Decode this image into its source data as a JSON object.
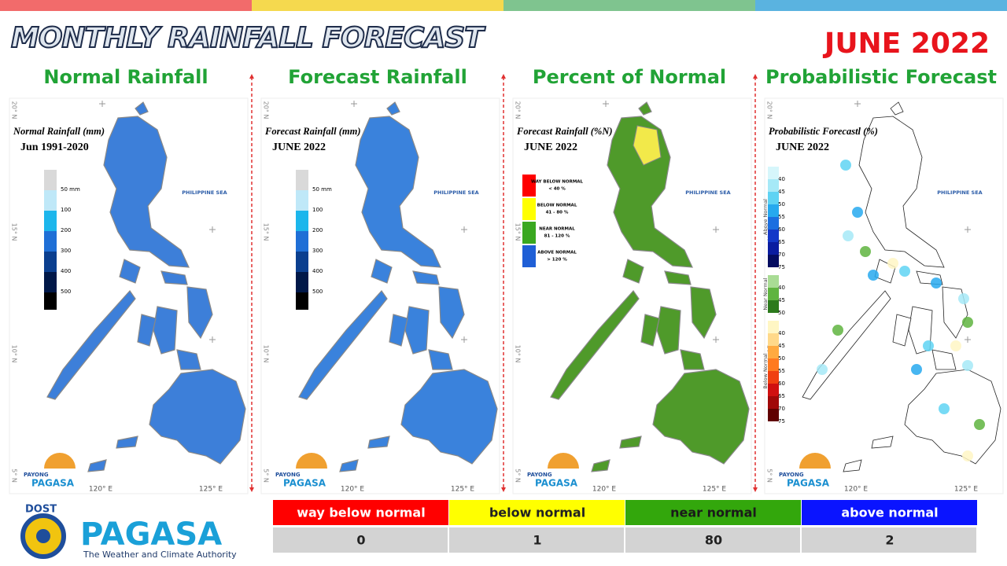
{
  "header": {
    "title": "MONTHLY RAINFALL FORECAST",
    "date": "JUNE 2022"
  },
  "grid_labels": {
    "lon": [
      "120° E",
      "125° E"
    ],
    "lat": [
      "20° N",
      "15° N",
      "10° N",
      "5° N"
    ],
    "sea": "PHILIPPINE SEA"
  },
  "panel_logo": {
    "top": "PAYONG",
    "main": "PAGASA"
  },
  "panels": [
    {
      "heading": "Normal Rainfall",
      "map_title": "Normal Rainfall (mm)",
      "map_subtitle": "Jun 1991-2020",
      "map_fill": "#3d7fd9",
      "legend": [
        {
          "label": "50 mm",
          "color": "#d9d9d9"
        },
        {
          "label": "100",
          "color": "#bfe8f8"
        },
        {
          "label": "200",
          "color": "#1cb6ec"
        },
        {
          "label": "300",
          "color": "#1f6fd6"
        },
        {
          "label": "400",
          "color": "#0b3f8f"
        },
        {
          "label": "500",
          "color": "#001848"
        }
      ]
    },
    {
      "heading": "Forecast Rainfall",
      "map_title": "Forecast Rainfall (mm)",
      "map_subtitle": "JUNE 2022",
      "map_fill": "#3a82dc",
      "legend": [
        {
          "label": "50 mm",
          "color": "#d9d9d9"
        },
        {
          "label": "100",
          "color": "#bfe8f8"
        },
        {
          "label": "200",
          "color": "#1cb6ec"
        },
        {
          "label": "300",
          "color": "#1f6fd6"
        },
        {
          "label": "400",
          "color": "#0b3f8f"
        },
        {
          "label": "500",
          "color": "#001848"
        }
      ]
    },
    {
      "heading": "Percent of Normal",
      "map_title": "Forecast Rainfall (%N)",
      "map_subtitle": "JUNE 2022",
      "map_fill": "#4f9a2a",
      "boxes": [
        {
          "label": "WAY BELOW NORMAL",
          "range": "< 40 %",
          "color": "#ff0000"
        },
        {
          "label": "BELOW NORMAL",
          "range": "41 - 80 %",
          "color": "#ffff00"
        },
        {
          "label": "NEAR NORMAL",
          "range": "81 - 120 %",
          "color": "#3aa820"
        },
        {
          "label": "ABOVE NORMAL",
          "range": "> 120 %",
          "color": "#1f5fd6"
        }
      ]
    },
    {
      "heading": "Probabilistic Forecast",
      "map_title": "Probabilistic Forecastl (%)",
      "map_subtitle": "JUNE 2022",
      "map_fill": "#ffffff",
      "groups": [
        {
          "name": "Above Normal",
          "items": [
            {
              "label": "40",
              "color": "#d6f6fb"
            },
            {
              "label": "45",
              "color": "#a6e9f7"
            },
            {
              "label": "50",
              "color": "#5fd3f3"
            },
            {
              "label": "55",
              "color": "#27a9ee"
            },
            {
              "label": "60",
              "color": "#1c6fe0"
            },
            {
              "label": "65",
              "color": "#1438c8"
            },
            {
              "label": "70",
              "color": "#0a1ca0"
            },
            {
              "label": "75",
              "color": "#040c60"
            }
          ]
        },
        {
          "name": "Near Normal",
          "items": [
            {
              "label": "40",
              "color": "#a9dc95"
            },
            {
              "label": "45",
              "color": "#5fb440"
            },
            {
              "label": "50",
              "color": "#2c7a1c"
            }
          ]
        },
        {
          "name": "Below Normal",
          "items": [
            {
              "label": "40",
              "color": "#fff6c4"
            },
            {
              "label": "45",
              "color": "#ffd98a"
            },
            {
              "label": "50",
              "color": "#ffaa40"
            },
            {
              "label": "55",
              "color": "#ff7a20"
            },
            {
              "label": "60",
              "color": "#f04010"
            },
            {
              "label": "65",
              "color": "#d01010"
            },
            {
              "label": "70",
              "color": "#a00808"
            },
            {
              "label": "75",
              "color": "#600000"
            }
          ]
        }
      ]
    }
  ],
  "summary": {
    "headers": [
      {
        "label": "way below normal",
        "color": "#ff0000",
        "text_color": "#ffffff"
      },
      {
        "label": "below normal",
        "color": "#ffff00",
        "text_color": "#222222"
      },
      {
        "label": "near normal",
        "color": "#33a70c",
        "text_color": "#1a1a1a"
      },
      {
        "label": "above normal",
        "color": "#0a14ff",
        "text_color": "#ffffff"
      }
    ],
    "counts": [
      "0",
      "1",
      "80",
      "2"
    ]
  },
  "footer_logo": {
    "top": "DOST",
    "main": "PAGASA",
    "tagline": "The Weather and Climate Authority"
  }
}
